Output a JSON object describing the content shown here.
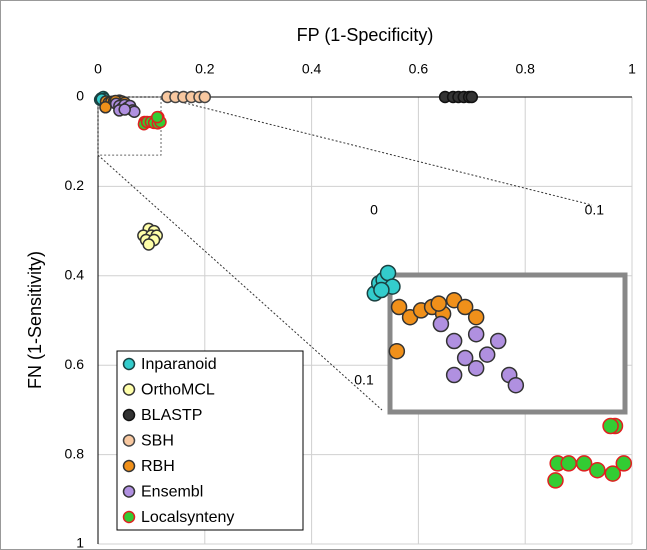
{
  "chart_data": {
    "type": "scatter",
    "x_label": "FP (1-Specificity)",
    "y_label": "FN (1-Sensitivity)",
    "xlim": [
      0,
      1
    ],
    "ylim": [
      0,
      1
    ],
    "xticks": [
      0,
      0.2,
      0.4,
      0.6,
      0.8,
      1
    ],
    "yticks": [
      0,
      0.2,
      0.4,
      0.6,
      0.8,
      1
    ],
    "y_inverted": true,
    "x_axis_position": "top",
    "grid": true,
    "legend_position": "lower left",
    "series": [
      {
        "name": "Inparanoid",
        "color": "#33cccc",
        "edgecolor": "#1a4040",
        "x": [
          0.004,
          0.006,
          0.008,
          0.01,
          0.012,
          0.007
        ],
        "values": [
          0.006,
          0.003,
          0.002,
          0,
          0.004,
          0.005
        ]
      },
      {
        "name": "OrthoMCL",
        "color": "#ffffaa",
        "edgecolor": "#333333",
        "x": [
          0.095,
          0.105,
          0.085,
          0.1,
          0.11,
          0.09,
          0.105,
          0.095
        ],
        "values": [
          0.295,
          0.3,
          0.31,
          0.31,
          0.31,
          0.32,
          0.32,
          0.33
        ]
      },
      {
        "name": "BLASTP",
        "color": "#333333",
        "edgecolor": "#111111",
        "x": [
          0.65,
          0.665,
          0.675,
          0.685,
          0.695,
          0.7
        ],
        "values": [
          0,
          0,
          0,
          0,
          0,
          0
        ]
      },
      {
        "name": "SBH",
        "color": "#f8c8a0",
        "edgecolor": "#444444",
        "x": [
          0.13,
          0.145,
          0.16,
          0.175,
          0.19,
          0.2
        ],
        "values": [
          0,
          0,
          0,
          0,
          0,
          0
        ]
      },
      {
        "name": "RBH",
        "color": "#f0901a",
        "edgecolor": "#333333",
        "x": [
          0.015,
          0.02,
          0.025,
          0.03,
          0.035,
          0.04,
          0.045,
          0.05,
          0.014,
          0.033
        ],
        "values": [
          0.01,
          0.013,
          0.011,
          0.01,
          0.012,
          0.008,
          0.01,
          0.013,
          0.023,
          0.009
        ]
      },
      {
        "name": "Ensembl",
        "color": "#b090e0",
        "edgecolor": "#333333",
        "x": [
          0.034,
          0.04,
          0.045,
          0.05,
          0.055,
          0.06,
          0.065,
          0.068,
          0.04,
          0.05
        ],
        "values": [
          0.015,
          0.02,
          0.025,
          0.018,
          0.024,
          0.02,
          0.03,
          0.033,
          0.03,
          0.028
        ]
      },
      {
        "name": "Localsynteny",
        "color": "#33cc33",
        "edgecolor": "#e02020",
        "x": [
          0.087,
          0.086,
          0.092,
          0.099,
          0.105,
          0.113,
          0.112,
          0.117,
          0.111
        ],
        "values": [
          0.056,
          0.061,
          0.056,
          0.056,
          0.058,
          0.045,
          0.059,
          0.056,
          0.045
        ]
      }
    ],
    "inset": {
      "xlim": [
        0,
        0.118
      ],
      "ylim": [
        0,
        0.13
      ],
      "xticks": [
        0,
        0.1
      ],
      "yticks": [
        0.1
      ]
    }
  }
}
